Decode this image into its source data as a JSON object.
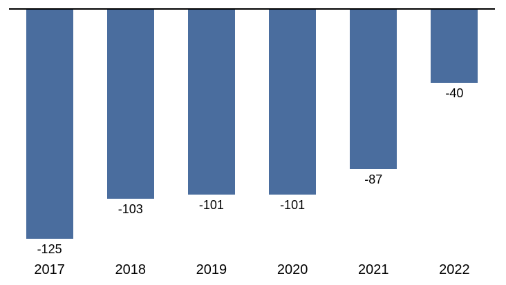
{
  "chart_data": {
    "type": "bar",
    "title": "",
    "xlabel": "",
    "ylabel": "",
    "categories": [
      "2017",
      "2018",
      "2019",
      "2020",
      "2021",
      "2022"
    ],
    "values": [
      -125,
      -103,
      -101,
      -101,
      -87,
      -40
    ],
    "data_labels": [
      "-125",
      "-103",
      "-101",
      "-101",
      "-87",
      "-40"
    ],
    "baseline": 0,
    "ylim": [
      -130,
      0
    ],
    "gridlines": false,
    "legend": "none",
    "bar_color": "#4A6D9E",
    "axis_color": "#000000",
    "label_color": "#000000"
  }
}
